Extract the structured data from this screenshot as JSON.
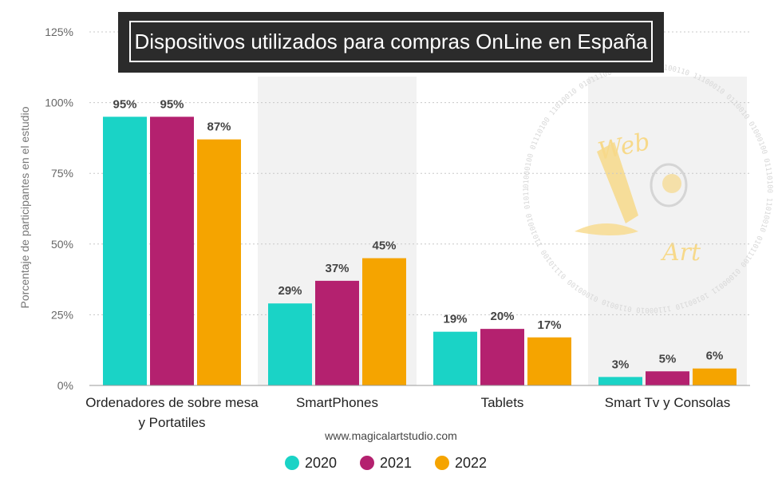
{
  "chart_data": {
    "type": "bar",
    "title": "Dispositivos utilizados para compras OnLine en España",
    "ylabel": "Porcentaje de participantes en el estudio",
    "ylim": [
      0,
      125
    ],
    "yticks": [
      "0%",
      "25%",
      "50%",
      "75%",
      "100%",
      "125%"
    ],
    "ytick_values": [
      0,
      25,
      50,
      75,
      100,
      125
    ],
    "grid": true,
    "legend_position": "bottom",
    "categories": [
      [
        "Ordenadores de sobre mesa",
        "y Portatiles"
      ],
      [
        "SmartPhones"
      ],
      [
        "Tablets"
      ],
      [
        "Smart Tv y Consolas"
      ]
    ],
    "series": [
      {
        "name": "2020",
        "color": "#1ad3c6",
        "values": [
          95,
          29,
          19,
          3
        ],
        "labels": [
          "95%",
          "29%",
          "19%",
          "3%"
        ]
      },
      {
        "name": "2021",
        "color": "#b4216f",
        "values": [
          95,
          37,
          20,
          5
        ],
        "labels": [
          "95%",
          "37%",
          "20%",
          "5%"
        ]
      },
      {
        "name": "2022",
        "color": "#f5a400",
        "values": [
          87,
          45,
          17,
          6
        ],
        "labels": [
          "87%",
          "45%",
          "17%",
          "6%"
        ]
      }
    ],
    "source": "www.magicalartstudio.com",
    "watermark": {
      "words": [
        "Web",
        "Art"
      ],
      "binary": "01000100 01110100 11010010 01011100 01000011 10100110 11100010 0110010",
      "color": "#f7d98a"
    }
  }
}
